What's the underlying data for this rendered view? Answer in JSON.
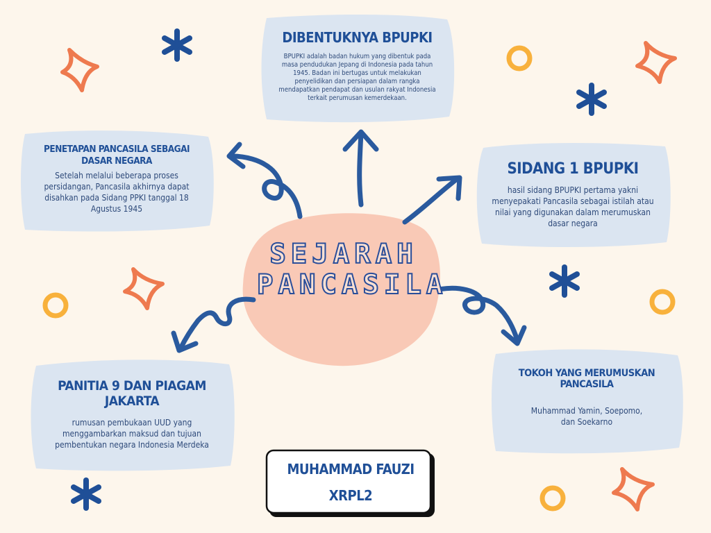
{
  "center": {
    "line1": "SEJARAH",
    "line2": "PANCASILA"
  },
  "nodes": {
    "bpupki": {
      "title": "DIBENTUKNYA BPUPKI",
      "text": "BPUPKI adalah badan hukum yang dibentuk pada masa pendudukan Jepang di Indonesia pada tahun 1945. Badan ini bertugas untuk melakukan penyelidikan dan persiapan dalam rangka mendapatkan pendapat dan usulan rakyat Indonesia terkait perumusan kemerdekaan."
    },
    "sidang1": {
      "title": "SIDANG 1 BPUPKI",
      "text": "hasil sidang BPUPKI pertama yakni menyepakati Pancasila sebagai istilah atau nilai yang digunakan dalam merumuskan dasar negara"
    },
    "penetapan": {
      "title": "PENETAPAN PANCASILA SEBAGAI DASAR NEGARA",
      "text": "Setelah melalui beberapa proses persidangan, Pancasila akhirnya dapat disahkan pada Sidang PPKI tanggal 18 Agustus 1945"
    },
    "panitia9": {
      "title": "PANITIA 9 DAN PIAGAM JAKARTA",
      "text": "rumusan pembukaan UUD yang menggambarkan maksud dan tujuan pembentukan negara Indonesia Merdeka"
    },
    "tokoh": {
      "title": "TOKOH YANG MERUMUSKAN PANCASILA",
      "text": "Muhammad Yamin, Soepomo, dan Soekarno"
    }
  },
  "author": {
    "name": "MUHAMMAD FAUZI",
    "class": "XRPL2"
  },
  "colors": {
    "background": "#fdf6ec",
    "box": "#dbe5f1",
    "center_blob": "#f9c9b6",
    "arrow": "#2a5a9e",
    "title": "#1f4f97",
    "sparkle": "#ee7a4f",
    "ring": "#f8b13c",
    "asterisk": "#1f4f97"
  },
  "icons": [
    "curly-arrow-icon",
    "sparkle-icon",
    "asterisk-icon",
    "ring-icon"
  ]
}
